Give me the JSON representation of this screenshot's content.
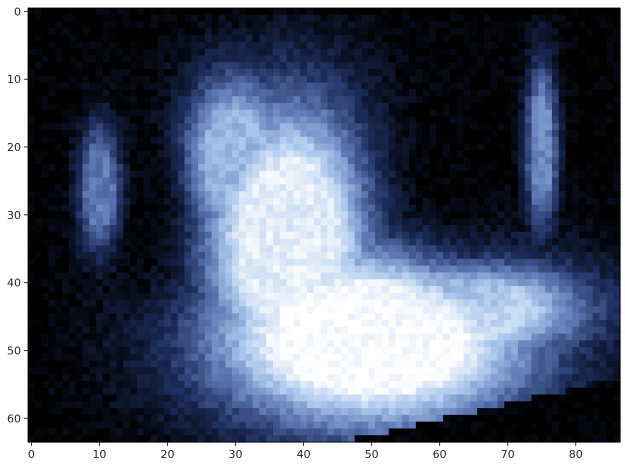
{
  "chart_data": {
    "type": "heatmap",
    "title": "",
    "xlabel": "",
    "ylabel": "",
    "colormap": "bone",
    "grid": false,
    "legend": "none",
    "grid_shape": {
      "cols": 87,
      "rows": 64
    },
    "xlim": [
      -0.5,
      86.5
    ],
    "ylim": [
      63.5,
      -0.5
    ],
    "x_ticks": [
      0,
      10,
      20,
      30,
      40,
      50,
      60,
      70,
      80
    ],
    "y_ticks": [
      0,
      10,
      20,
      30,
      40,
      50,
      60
    ],
    "x_tick_labels": [
      "0",
      "10",
      "20",
      "30",
      "40",
      "50",
      "60",
      "70",
      "80"
    ],
    "y_tick_labels": [
      "0",
      "10",
      "20",
      "30",
      "40",
      "50",
      "60"
    ],
    "value_range": [
      0,
      1
    ],
    "colors": {
      "low": "#000000",
      "mid_dark": "#1c2c5a",
      "mid": "#5d78b4",
      "mid_light": "#a9c6ec",
      "high": "#ffffff"
    },
    "regions": [
      {
        "kind": "ellipse",
        "cx": 50,
        "cy": 48,
        "rx": 30,
        "ry": 17,
        "value": 1.0
      },
      {
        "kind": "ellipse",
        "cx": 38,
        "cy": 34,
        "rx": 16,
        "ry": 26,
        "value": 0.92
      },
      {
        "kind": "ellipse",
        "cx": 30,
        "cy": 22,
        "rx": 10,
        "ry": 16,
        "value": 0.7
      },
      {
        "kind": "ellipse",
        "cx": 62,
        "cy": 44,
        "rx": 24,
        "ry": 10,
        "value": 0.85
      },
      {
        "kind": "ellipse",
        "cx": 16,
        "cy": 30,
        "rx": 7,
        "ry": 16,
        "value": 0.1
      },
      {
        "kind": "ellipse",
        "cx": 63,
        "cy": 24,
        "rx": 13,
        "ry": 16,
        "value": 0.05
      },
      {
        "kind": "ellipse",
        "cx": 10,
        "cy": 26,
        "rx": 4,
        "ry": 12,
        "value": 0.5
      },
      {
        "kind": "ellipse",
        "cx": 75,
        "cy": 20,
        "rx": 3,
        "ry": 16,
        "value": 0.55
      }
    ]
  }
}
